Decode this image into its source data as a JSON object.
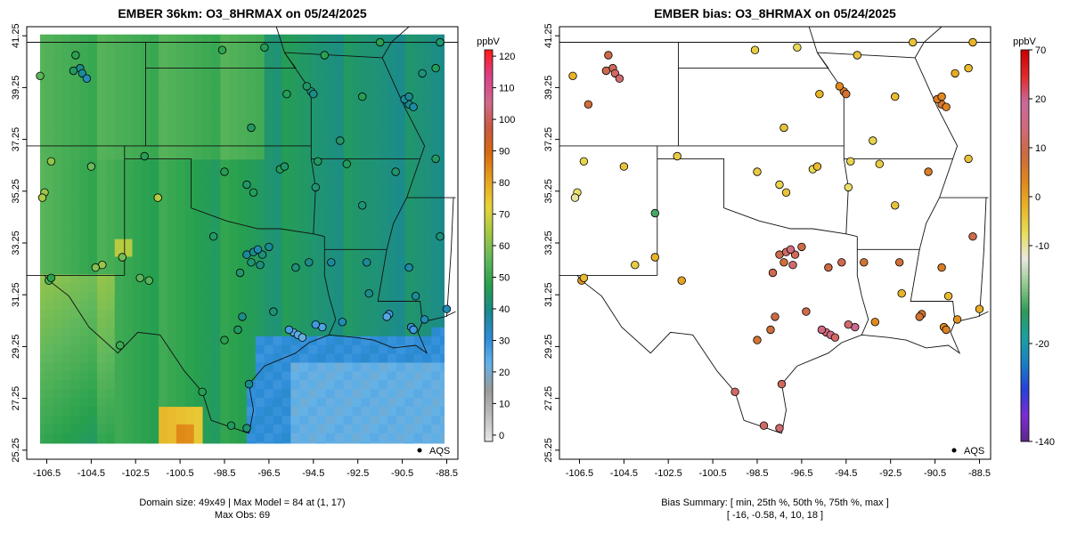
{
  "panels": {
    "left": {
      "title": "EMBER 36km: O3_8HRMAX on 05/24/2025",
      "footer_lines": [
        "Domain size: 49x49 | Max Model = 84 at (1, 17)",
        "Max Obs: 69"
      ],
      "legend_label": "AQS",
      "colorbar": {
        "unit": "ppbV",
        "ticks": [
          0,
          10,
          20,
          30,
          40,
          50,
          60,
          70,
          80,
          90,
          100,
          110,
          120
        ],
        "range": [
          -2,
          122
        ],
        "colors": [
          "#e8e8e8",
          "#bdbdbd",
          "#9a9a9a",
          "#63b2e8",
          "#2d8bd8",
          "#1a8a8e",
          "#27a04e",
          "#62b85c",
          "#a3c845",
          "#e8d43a",
          "#e7a421",
          "#d86d10",
          "#c95a3d",
          "#d26a8c",
          "#d9418a",
          "#ff1a1a"
        ]
      },
      "model_field": {
        "ocean_value": 32,
        "bands": [
          {
            "region": "west",
            "value": 53
          },
          {
            "region": "central-west",
            "value": 52
          },
          {
            "region": "central",
            "value": 49
          },
          {
            "region": "east-central",
            "value": 45
          },
          {
            "region": "east",
            "value": 40
          },
          {
            "region": "southwest-high",
            "value": 75
          },
          {
            "region": "southwest-max",
            "value": 84
          },
          {
            "region": "far-west",
            "value": 60
          }
        ]
      },
      "obs_points": [
        {
          "lon": -105.2,
          "lat": 40.5,
          "v": 48
        },
        {
          "lon": -105.0,
          "lat": 40.0,
          "v": 40
        },
        {
          "lon": -104.9,
          "lat": 39.8,
          "v": 38
        },
        {
          "lon": -105.3,
          "lat": 39.9,
          "v": 45
        },
        {
          "lon": -104.7,
          "lat": 39.6,
          "v": 35
        },
        {
          "lon": -106.8,
          "lat": 39.7,
          "v": 55
        },
        {
          "lon": -107.9,
          "lat": 38.1,
          "v": 60
        },
        {
          "lon": -106.3,
          "lat": 36.4,
          "v": 62
        },
        {
          "lon": -106.6,
          "lat": 35.2,
          "v": 63
        },
        {
          "lon": -106.7,
          "lat": 35.0,
          "v": 65
        },
        {
          "lon": -104.5,
          "lat": 36.2,
          "v": 57
        },
        {
          "lon": -101.5,
          "lat": 35.0,
          "v": 66
        },
        {
          "lon": -106.4,
          "lat": 31.8,
          "v": 52
        },
        {
          "lon": -106.3,
          "lat": 31.9,
          "v": 48
        },
        {
          "lon": -104.0,
          "lat": 32.4,
          "v": 63
        },
        {
          "lon": -104.3,
          "lat": 32.3,
          "v": 60
        },
        {
          "lon": -103.1,
          "lat": 32.7,
          "v": 58
        },
        {
          "lon": -102.3,
          "lat": 31.9,
          "v": 55
        },
        {
          "lon": -101.9,
          "lat": 31.8,
          "v": 54
        },
        {
          "lon": -103.2,
          "lat": 29.3,
          "v": 51
        },
        {
          "lon": -99.0,
          "lat": 33.5,
          "v": 45
        },
        {
          "lon": -97.5,
          "lat": 32.8,
          "v": 38
        },
        {
          "lon": -97.2,
          "lat": 32.9,
          "v": 40
        },
        {
          "lon": -96.8,
          "lat": 32.8,
          "v": 42
        },
        {
          "lon": -97.0,
          "lat": 33.0,
          "v": 36
        },
        {
          "lon": -96.5,
          "lat": 33.1,
          "v": 39
        },
        {
          "lon": -97.3,
          "lat": 32.5,
          "v": 43
        },
        {
          "lon": -97.8,
          "lat": 32.1,
          "v": 44
        },
        {
          "lon": -96.9,
          "lat": 32.4,
          "v": 41
        },
        {
          "lon": -97.7,
          "lat": 30.4,
          "v": 40
        },
        {
          "lon": -98.5,
          "lat": 29.5,
          "v": 48
        },
        {
          "lon": -97.9,
          "lat": 29.9,
          "v": 45
        },
        {
          "lon": -95.4,
          "lat": 29.8,
          "v": 25
        },
        {
          "lon": -95.2,
          "lat": 29.7,
          "v": 24
        },
        {
          "lon": -95.0,
          "lat": 29.6,
          "v": 22
        },
        {
          "lon": -95.6,
          "lat": 29.9,
          "v": 27
        },
        {
          "lon": -94.1,
          "lat": 30.0,
          "v": 26
        },
        {
          "lon": -94.4,
          "lat": 30.1,
          "v": 28
        },
        {
          "lon": -96.3,
          "lat": 30.6,
          "v": 42
        },
        {
          "lon": -97.4,
          "lat": 27.8,
          "v": 40
        },
        {
          "lon": -99.5,
          "lat": 27.5,
          "v": 47
        },
        {
          "lon": -97.5,
          "lat": 26.1,
          "v": 43
        },
        {
          "lon": -98.2,
          "lat": 26.2,
          "v": 45
        },
        {
          "lon": -95.3,
          "lat": 32.3,
          "v": 42
        },
        {
          "lon": -94.7,
          "lat": 32.5,
          "v": 40
        },
        {
          "lon": -93.7,
          "lat": 32.5,
          "v": 38
        },
        {
          "lon": -92.1,
          "lat": 32.5,
          "v": 38
        },
        {
          "lon": -91.1,
          "lat": 30.5,
          "v": 28
        },
        {
          "lon": -91.2,
          "lat": 30.4,
          "v": 25
        },
        {
          "lon": -90.1,
          "lat": 30.0,
          "v": 30
        },
        {
          "lon": -90.0,
          "lat": 29.9,
          "v": 28
        },
        {
          "lon": -89.5,
          "lat": 30.3,
          "v": 35
        },
        {
          "lon": -88.5,
          "lat": 30.7,
          "v": 35
        },
        {
          "lon": -90.2,
          "lat": 32.3,
          "v": 37
        },
        {
          "lon": -88.8,
          "lat": 33.5,
          "v": 42
        },
        {
          "lon": -97.5,
          "lat": 35.5,
          "v": 44
        },
        {
          "lon": -97.2,
          "lat": 35.2,
          "v": 46
        },
        {
          "lon": -96.0,
          "lat": 36.1,
          "v": 46
        },
        {
          "lon": -95.8,
          "lat": 36.2,
          "v": 44
        },
        {
          "lon": -98.5,
          "lat": 36.0,
          "v": 47
        },
        {
          "lon": -94.3,
          "lat": 36.4,
          "v": 45
        },
        {
          "lon": -92.3,
          "lat": 34.7,
          "v": 42
        },
        {
          "lon": -94.4,
          "lat": 35.4,
          "v": 43
        },
        {
          "lon": -93.0,
          "lat": 36.3,
          "v": 46
        },
        {
          "lon": -94.6,
          "lat": 39.1,
          "v": 42
        },
        {
          "lon": -94.5,
          "lat": 39.0,
          "v": 40
        },
        {
          "lon": -94.8,
          "lat": 39.3,
          "v": 44
        },
        {
          "lon": -97.3,
          "lat": 37.7,
          "v": 45
        },
        {
          "lon": -95.7,
          "lat": 39.0,
          "v": 46
        },
        {
          "lon": -90.2,
          "lat": 38.6,
          "v": 40
        },
        {
          "lon": -90.4,
          "lat": 38.8,
          "v": 38
        },
        {
          "lon": -90.0,
          "lat": 38.5,
          "v": 37
        },
        {
          "lon": -90.2,
          "lat": 38.9,
          "v": 39
        },
        {
          "lon": -92.3,
          "lat": 38.9,
          "v": 47
        },
        {
          "lon": -93.3,
          "lat": 37.2,
          "v": 44
        },
        {
          "lon": -91.5,
          "lat": 41.0,
          "v": 48
        },
        {
          "lon": -89.0,
          "lat": 40.0,
          "v": 46
        },
        {
          "lon": -88.8,
          "lat": 41.0,
          "v": 44
        },
        {
          "lon": -89.6,
          "lat": 39.8,
          "v": 42
        },
        {
          "lon": -98.6,
          "lat": 40.7,
          "v": 49
        },
        {
          "lon": -96.7,
          "lat": 40.8,
          "v": 46
        },
        {
          "lon": -94.0,
          "lat": 40.5,
          "v": 48
        },
        {
          "lon": -90.8,
          "lat": 36.0,
          "v": 44
        },
        {
          "lon": -89.0,
          "lat": 36.5,
          "v": 45
        },
        {
          "lon": -92.0,
          "lat": 31.3,
          "v": 40
        },
        {
          "lon": -93.2,
          "lat": 30.2,
          "v": 35
        },
        {
          "lon": -89.9,
          "lat": 31.2,
          "v": 38
        },
        {
          "lon": -102.1,
          "lat": 36.6,
          "v": 47
        }
      ]
    },
    "right": {
      "title": "EMBER bias: O3_8HRMAX on 05/24/2025",
      "footer_lines": [
        "Bias Summary: [ min, 25th %, 50th %, 75th %, max ]",
        "[ -16,   -0.58,   4,   10,   18 ]"
      ],
      "legend_label": "AQS",
      "colorbar": {
        "unit": "ppbV",
        "ticks": [
          -140,
          -20,
          -10,
          0,
          10,
          20,
          70
        ],
        "tick_positions": [
          0,
          0.25,
          0.5,
          0.625,
          0.75,
          0.875,
          1
        ],
        "colors": [
          "#5b2a8a",
          "#7d2bd1",
          "#2741d8",
          "#1a80c4",
          "#1aa0a0",
          "#2e9a58",
          "#8fc98a",
          "#e8e8e0",
          "#e8dd5a",
          "#e8b327",
          "#e0861e",
          "#cc6a3e",
          "#d26a7a",
          "#c96a9a",
          "#e02a2a",
          "#cc0000"
        ]
      },
      "bias_points": [
        {
          "lon": -106.1,
          "lat": 38.6,
          "v": 8
        },
        {
          "lon": -105.2,
          "lat": 40.5,
          "v": 9
        },
        {
          "lon": -105.0,
          "lat": 40.0,
          "v": 11
        },
        {
          "lon": -104.9,
          "lat": 39.8,
          "v": 12
        },
        {
          "lon": -105.3,
          "lat": 39.9,
          "v": 10
        },
        {
          "lon": -104.7,
          "lat": 39.6,
          "v": 13
        },
        {
          "lon": -106.8,
          "lat": 39.7,
          "v": -2
        },
        {
          "lon": -107.9,
          "lat": 38.1,
          "v": -5
        },
        {
          "lon": -106.3,
          "lat": 36.4,
          "v": -6
        },
        {
          "lon": -106.6,
          "lat": 35.2,
          "v": -8
        },
        {
          "lon": -106.7,
          "lat": 35.0,
          "v": -10
        },
        {
          "lon": -104.5,
          "lat": 36.2,
          "v": -4
        },
        {
          "lon": -103.1,
          "lat": 34.4,
          "v": -16
        },
        {
          "lon": -106.4,
          "lat": 31.8,
          "v": 2
        },
        {
          "lon": -106.3,
          "lat": 31.9,
          "v": -3
        },
        {
          "lon": -104.0,
          "lat": 32.4,
          "v": -5
        },
        {
          "lon": -103.1,
          "lat": 32.7,
          "v": -2
        },
        {
          "lon": -97.5,
          "lat": 32.8,
          "v": 10
        },
        {
          "lon": -97.2,
          "lat": 32.9,
          "v": 12
        },
        {
          "lon": -96.8,
          "lat": 32.8,
          "v": 11
        },
        {
          "lon": -97.0,
          "lat": 33.0,
          "v": 14
        },
        {
          "lon": -96.5,
          "lat": 33.1,
          "v": 9
        },
        {
          "lon": -97.3,
          "lat": 32.5,
          "v": 8
        },
        {
          "lon": -97.8,
          "lat": 32.1,
          "v": 10
        },
        {
          "lon": -96.9,
          "lat": 32.4,
          "v": 13
        },
        {
          "lon": -97.7,
          "lat": 30.4,
          "v": 9
        },
        {
          "lon": -98.5,
          "lat": 29.5,
          "v": 7
        },
        {
          "lon": -97.9,
          "lat": 29.9,
          "v": 8
        },
        {
          "lon": -95.4,
          "lat": 29.8,
          "v": 14
        },
        {
          "lon": -95.2,
          "lat": 29.7,
          "v": 16
        },
        {
          "lon": -95.0,
          "lat": 29.6,
          "v": 12
        },
        {
          "lon": -95.6,
          "lat": 29.9,
          "v": 15
        },
        {
          "lon": -94.1,
          "lat": 30.0,
          "v": 18
        },
        {
          "lon": -94.4,
          "lat": 30.1,
          "v": 13
        },
        {
          "lon": -96.3,
          "lat": 30.6,
          "v": 10
        },
        {
          "lon": -97.4,
          "lat": 27.8,
          "v": 11
        },
        {
          "lon": -99.5,
          "lat": 27.5,
          "v": 12
        },
        {
          "lon": -97.5,
          "lat": 26.1,
          "v": 13
        },
        {
          "lon": -98.2,
          "lat": 26.2,
          "v": 12
        },
        {
          "lon": -95.3,
          "lat": 32.3,
          "v": 9
        },
        {
          "lon": -94.7,
          "lat": 32.5,
          "v": 10
        },
        {
          "lon": -93.7,
          "lat": 32.5,
          "v": 7
        },
        {
          "lon": -92.1,
          "lat": 32.5,
          "v": 8
        },
        {
          "lon": -91.1,
          "lat": 30.5,
          "v": 6
        },
        {
          "lon": -91.2,
          "lat": 30.4,
          "v": 7
        },
        {
          "lon": -90.1,
          "lat": 30.0,
          "v": 3
        },
        {
          "lon": -90.0,
          "lat": 29.9,
          "v": 4
        },
        {
          "lon": -89.5,
          "lat": 30.3,
          "v": 2
        },
        {
          "lon": -88.5,
          "lat": 30.7,
          "v": -1
        },
        {
          "lon": -90.2,
          "lat": 32.3,
          "v": 5
        },
        {
          "lon": -88.8,
          "lat": 33.5,
          "v": 10
        },
        {
          "lon": -97.5,
          "lat": 35.5,
          "v": -6
        },
        {
          "lon": -97.2,
          "lat": 35.2,
          "v": -4
        },
        {
          "lon": -96.0,
          "lat": 36.1,
          "v": -7
        },
        {
          "lon": -95.8,
          "lat": 36.2,
          "v": -3
        },
        {
          "lon": -98.5,
          "lat": 36.0,
          "v": -5
        },
        {
          "lon": -94.3,
          "lat": 36.4,
          "v": -6
        },
        {
          "lon": -92.3,
          "lat": 34.7,
          "v": -4
        },
        {
          "lon": -94.4,
          "lat": 35.4,
          "v": -8
        },
        {
          "lon": -93.0,
          "lat": 36.3,
          "v": -5
        },
        {
          "lon": -94.6,
          "lat": 39.1,
          "v": 5
        },
        {
          "lon": -94.5,
          "lat": 39.0,
          "v": 7
        },
        {
          "lon": -94.8,
          "lat": 39.3,
          "v": 3
        },
        {
          "lon": -97.3,
          "lat": 37.7,
          "v": -4
        },
        {
          "lon": -95.7,
          "lat": 39.0,
          "v": -2
        },
        {
          "lon": -90.2,
          "lat": 38.6,
          "v": 6
        },
        {
          "lon": -90.4,
          "lat": 38.8,
          "v": 5
        },
        {
          "lon": -90.0,
          "lat": 38.5,
          "v": 4
        },
        {
          "lon": -90.2,
          "lat": 38.9,
          "v": 3
        },
        {
          "lon": -92.3,
          "lat": 38.9,
          "v": -3
        },
        {
          "lon": -93.3,
          "lat": 37.2,
          "v": -6
        },
        {
          "lon": -91.5,
          "lat": 41.0,
          "v": -4
        },
        {
          "lon": -89.0,
          "lat": 40.0,
          "v": -3
        },
        {
          "lon": -88.8,
          "lat": 41.0,
          "v": -2
        },
        {
          "lon": -89.6,
          "lat": 39.8,
          "v": -1
        },
        {
          "lon": -98.6,
          "lat": 40.7,
          "v": -5
        },
        {
          "lon": -96.7,
          "lat": 40.8,
          "v": -7
        },
        {
          "lon": -94.0,
          "lat": 40.5,
          "v": -4
        },
        {
          "lon": -90.8,
          "lat": 36.0,
          "v": 5
        },
        {
          "lon": -89.0,
          "lat": 36.5,
          "v": -4
        },
        {
          "lon": -92.0,
          "lat": 31.3,
          "v": -2
        },
        {
          "lon": -93.2,
          "lat": 30.2,
          "v": 3
        },
        {
          "lon": -89.9,
          "lat": 31.2,
          "v": -3
        },
        {
          "lon": -102.1,
          "lat": 36.6,
          "v": -5
        },
        {
          "lon": -101.9,
          "lat": 31.8,
          "v": 0
        }
      ]
    }
  },
  "axes": {
    "lon_ticks": [
      "-106.5",
      "-104.5",
      "-102.5",
      "-100.5",
      "-98.5",
      "-96.5",
      "-94.5",
      "-92.5",
      "-90.5",
      "-88.5"
    ],
    "lat_ticks": [
      "25.25",
      "27.25",
      "29.25",
      "31.25",
      "33.25",
      "35.25",
      "37.25",
      "39.25",
      "41.25"
    ],
    "lon_range": [
      -107.4,
      -88.0
    ],
    "lat_range": [
      24.9,
      41.6
    ]
  }
}
